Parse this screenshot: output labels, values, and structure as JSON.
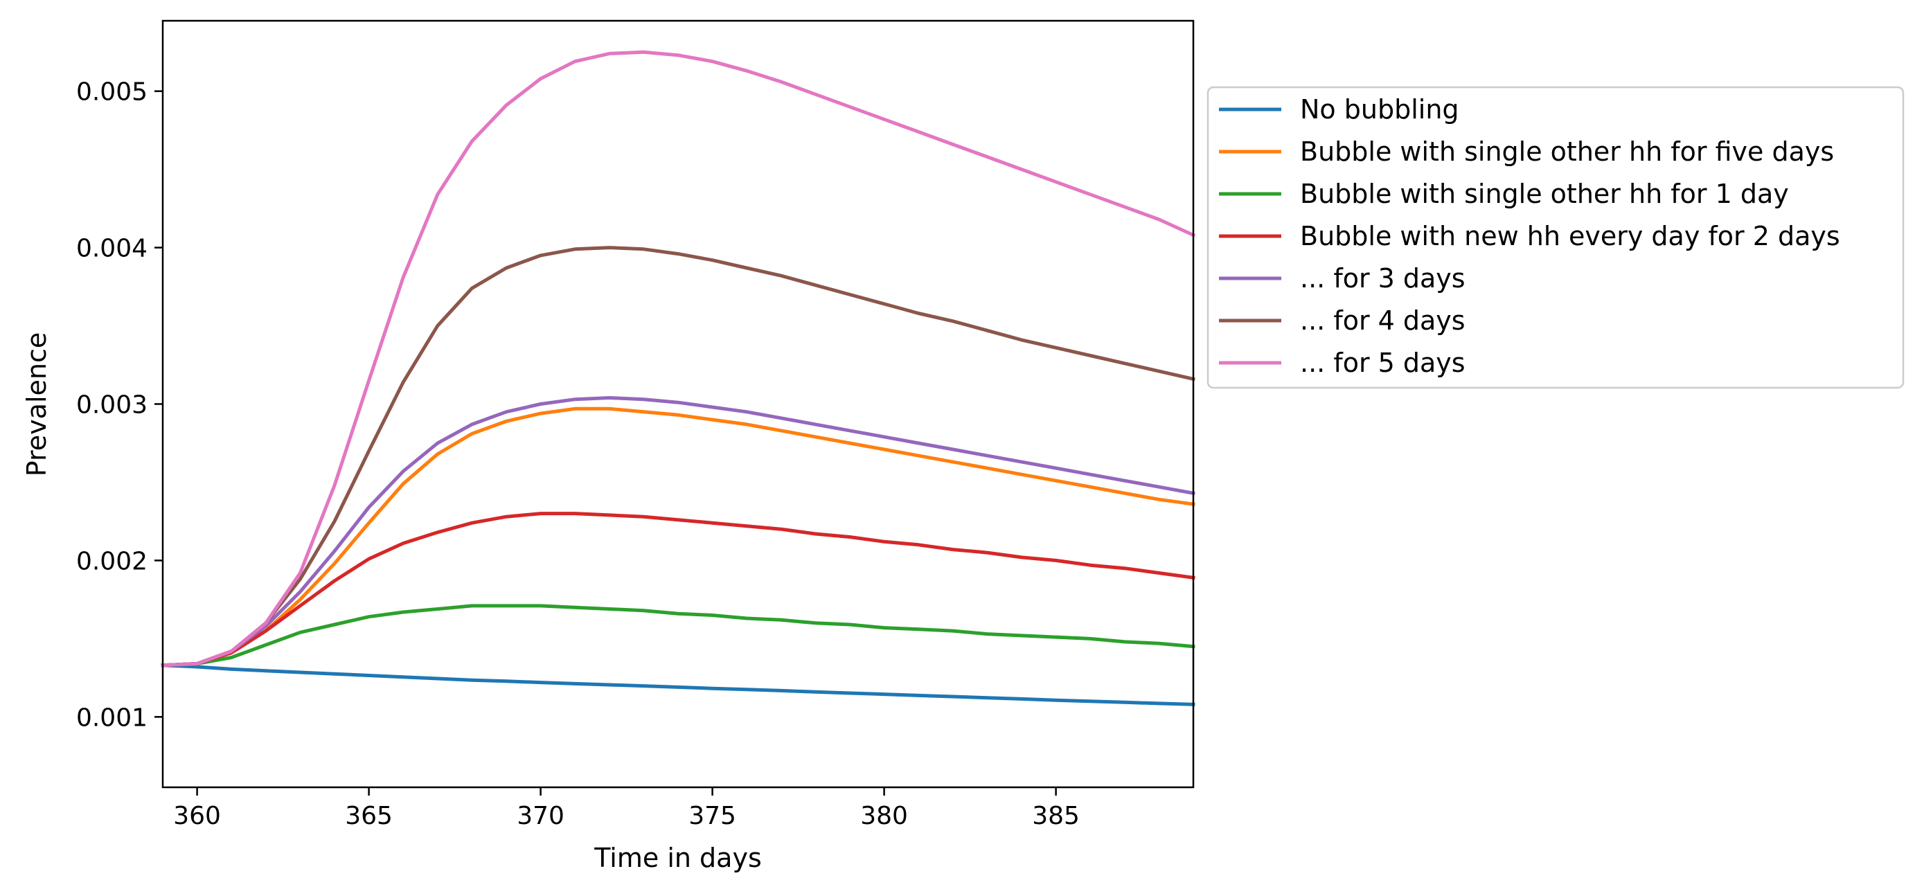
{
  "chart_data": {
    "type": "line",
    "title": "",
    "xlabel": "Time in days",
    "ylabel": "Prevalence",
    "xlim": [
      359,
      389
    ],
    "ylim": [
      0.00055,
      0.00545
    ],
    "xticks": [
      360,
      365,
      370,
      375,
      380,
      385
    ],
    "yticks": [
      0.001,
      0.002,
      0.003,
      0.004,
      0.005
    ],
    "xtick_labels": [
      "360",
      "365",
      "370",
      "375",
      "380",
      "385"
    ],
    "ytick_labels": [
      "0.001",
      "0.002",
      "0.003",
      "0.004",
      "0.005"
    ],
    "grid": false,
    "legend_position": "outside-right-top",
    "x": [
      359,
      360,
      361,
      362,
      363,
      364,
      365,
      366,
      367,
      368,
      369,
      370,
      371,
      372,
      373,
      374,
      375,
      376,
      377,
      378,
      379,
      380,
      381,
      382,
      383,
      384,
      385,
      386,
      387,
      388,
      389
    ],
    "series": [
      {
        "name": "No bubbling",
        "color": "#1f77b4",
        "values": [
          0.00133,
          0.00132,
          0.001305,
          0.001295,
          0.001285,
          0.001275,
          0.001265,
          0.001255,
          0.001245,
          0.001235,
          0.001228,
          0.00122,
          0.001212,
          0.001205,
          0.001198,
          0.00119,
          0.001182,
          0.001175,
          0.001168,
          0.00116,
          0.001152,
          0.001145,
          0.001137,
          0.00113,
          0.001122,
          0.001115,
          0.001107,
          0.0011,
          0.001093,
          0.001086,
          0.00108
        ]
      },
      {
        "name": "Bubble with single other hh for five days",
        "color": "#ff7f0e",
        "values": [
          0.00133,
          0.00134,
          0.00141,
          0.00155,
          0.00175,
          0.00198,
          0.00224,
          0.00249,
          0.00268,
          0.00281,
          0.00289,
          0.00294,
          0.00297,
          0.00297,
          0.00295,
          0.00293,
          0.0029,
          0.00287,
          0.00283,
          0.00279,
          0.00275,
          0.00271,
          0.00267,
          0.00263,
          0.00259,
          0.00255,
          0.00251,
          0.00247,
          0.00243,
          0.00239,
          0.00236
        ]
      },
      {
        "name": "Bubble with single other hh for 1 day",
        "color": "#2ca02c",
        "values": [
          0.00133,
          0.00134,
          0.00138,
          0.00146,
          0.00154,
          0.00159,
          0.00164,
          0.00167,
          0.00169,
          0.00171,
          0.00171,
          0.00171,
          0.0017,
          0.00169,
          0.00168,
          0.00166,
          0.00165,
          0.00163,
          0.00162,
          0.0016,
          0.00159,
          0.00157,
          0.00156,
          0.00155,
          0.00153,
          0.00152,
          0.00151,
          0.0015,
          0.00148,
          0.00147,
          0.00145
        ]
      },
      {
        "name": "Bubble with new hh every day for 2 days",
        "color": "#d62728",
        "values": [
          0.00133,
          0.00134,
          0.00141,
          0.00155,
          0.00171,
          0.00187,
          0.00201,
          0.00211,
          0.00218,
          0.00224,
          0.00228,
          0.0023,
          0.0023,
          0.00229,
          0.00228,
          0.00226,
          0.00224,
          0.00222,
          0.0022,
          0.00217,
          0.00215,
          0.00212,
          0.0021,
          0.00207,
          0.00205,
          0.00202,
          0.002,
          0.00197,
          0.00195,
          0.00192,
          0.00189
        ]
      },
      {
        "name": "... for 3 days",
        "color": "#9467bd",
        "values": [
          0.00133,
          0.00134,
          0.00142,
          0.00158,
          0.0018,
          0.00206,
          0.00234,
          0.00257,
          0.00275,
          0.00287,
          0.00295,
          0.003,
          0.00303,
          0.00304,
          0.00303,
          0.00301,
          0.00298,
          0.00295,
          0.00291,
          0.00287,
          0.00283,
          0.00279,
          0.00275,
          0.00271,
          0.00267,
          0.00263,
          0.00259,
          0.00255,
          0.00251,
          0.00247,
          0.00243
        ]
      },
      {
        "name": "... for 4 days",
        "color": "#8c564b",
        "values": [
          0.00133,
          0.00134,
          0.00142,
          0.0016,
          0.00188,
          0.00225,
          0.0027,
          0.00314,
          0.0035,
          0.00374,
          0.00387,
          0.00395,
          0.00399,
          0.004,
          0.00399,
          0.00396,
          0.00392,
          0.00387,
          0.00382,
          0.00376,
          0.0037,
          0.00364,
          0.00358,
          0.00353,
          0.00347,
          0.00341,
          0.00336,
          0.00331,
          0.00326,
          0.00321,
          0.00316
        ]
      },
      {
        "name": "... for 5 days",
        "color": "#e377c2",
        "values": [
          0.00133,
          0.00134,
          0.00142,
          0.0016,
          0.00192,
          0.00248,
          0.00315,
          0.00381,
          0.00434,
          0.00468,
          0.00491,
          0.00508,
          0.00519,
          0.00524,
          0.00525,
          0.00523,
          0.00519,
          0.00513,
          0.00506,
          0.00498,
          0.0049,
          0.00482,
          0.00474,
          0.00466,
          0.00458,
          0.0045,
          0.00442,
          0.00434,
          0.00426,
          0.00418,
          0.00408
        ]
      }
    ]
  }
}
